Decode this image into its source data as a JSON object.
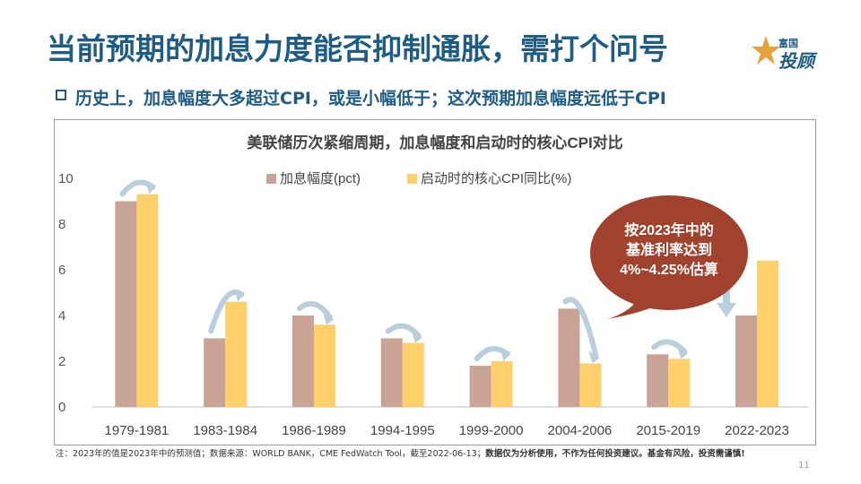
{
  "slide": {
    "title": "当前预期的加息力度能否抑制通胀，需打个问号",
    "subtitle": "历史上，加息幅度大多超过CPI，或是小幅低于；这次预期加息幅度远低于CPI",
    "logo_line1": "富国",
    "logo_line2": "投顾",
    "footnote_normal": "注：2023年的值是2023年中的预测值；数据来源：WORLD BANK，CME FedWatch Tool，截至2022-06-13；",
    "footnote_bold": "数据仅为分析使用，不作为任何投资建议。基金有风险，投资需谨慎!",
    "page_number": "11",
    "colors": {
      "title": "#1f5c84",
      "bubble": "#a0422d",
      "arrow": "#b9cfdd"
    }
  },
  "chart_data": {
    "type": "bar",
    "title": "美联储历次紧缩周期，加息幅度和启动时的核心CPI对比",
    "categories": [
      "1979-1981",
      "1983-1984",
      "1986-1989",
      "1994-1995",
      "1999-2000",
      "2004-2006",
      "2015-2019",
      "2022-2023"
    ],
    "series": [
      {
        "name": "加息幅度(pct)",
        "color": "#c9a396",
        "values": [
          9.0,
          3.0,
          4.0,
          3.0,
          1.8,
          4.3,
          2.3,
          4.0
        ]
      },
      {
        "name": "启动时的核心CPI同比(%)",
        "color": "#fdd06b",
        "values": [
          9.3,
          4.6,
          3.6,
          2.8,
          2.0,
          1.9,
          2.1,
          6.4
        ]
      }
    ],
    "ylim": [
      0,
      10
    ],
    "yticks": [
      "0",
      "2",
      "4",
      "6",
      "8",
      "10"
    ],
    "ytick_values": [
      0,
      2,
      4,
      6,
      8,
      10
    ],
    "grid": false,
    "legend": "top-center",
    "annotation": {
      "lines": [
        "按2023年中的",
        "基准利率达到",
        "4%~4.25%估算"
      ]
    }
  }
}
